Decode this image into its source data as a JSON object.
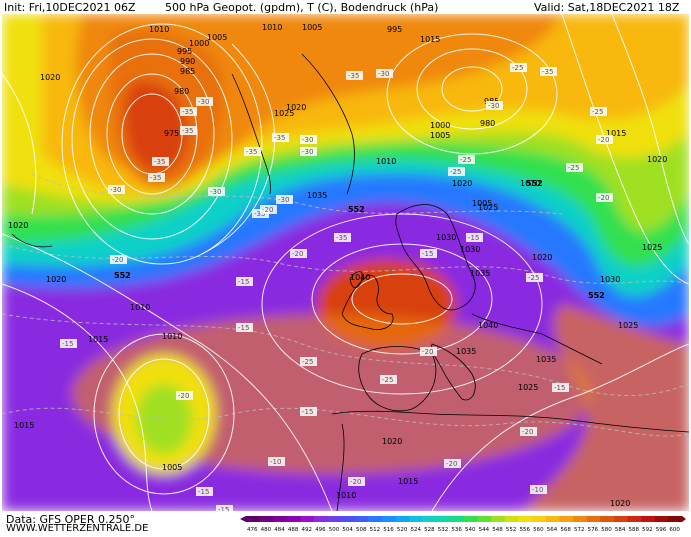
{
  "header": {
    "init": "Init: Fri,10DEC2021 06Z",
    "title": "500 hPa Geopot. (gpdm), T (C), Bodendruck (hPa)",
    "valid": "Valid: Sat,18DEC2021 18Z"
  },
  "footer": {
    "data_source": "Data: GFS OPER 0.250°",
    "site": "WWW.WETTERZENTRALE.DE"
  },
  "colors": {
    "background": "#ffffff",
    "isobar": "#ffffff",
    "coastline": "#000000",
    "temp_line": "#bbbbbb"
  },
  "legend": {
    "values": [
      "476",
      "480",
      "484",
      "488",
      "492",
      "496",
      "500",
      "504",
      "508",
      "512",
      "516",
      "520",
      "524",
      "528",
      "532",
      "536",
      "540",
      "544",
      "548",
      "552",
      "556",
      "560",
      "564",
      "568",
      "572",
      "576",
      "580",
      "584",
      "588",
      "592",
      "596",
      "600"
    ],
    "colors": [
      "#5a0066",
      "#6e0080",
      "#80009a",
      "#8e00b4",
      "#9b10cc",
      "#8a2ce0",
      "#6a40e8",
      "#5050f0",
      "#3c60f8",
      "#2878ff",
      "#1a90ff",
      "#10a8f0",
      "#10c0e0",
      "#10d0c8",
      "#10d8a8",
      "#18dc80",
      "#30e050",
      "#60e030",
      "#a0e020",
      "#d0e010",
      "#f0e010",
      "#f8d010",
      "#f8b810",
      "#f8a010",
      "#f08810",
      "#e87010",
      "#e05810",
      "#d84010",
      "#d02810",
      "#c01010",
      "#a00a0a",
      "#800808"
    ]
  },
  "map": {
    "height_fields": [
      {
        "level": "508",
        "color": "#8a2ce0"
      },
      {
        "level": "520",
        "color": "#2878ff"
      },
      {
        "level": "532",
        "color": "#10d0c8"
      },
      {
        "level": "540",
        "color": "#30e050"
      },
      {
        "level": "548",
        "color": "#a0e020"
      },
      {
        "level": "556",
        "color": "#f0e010"
      },
      {
        "level": "564",
        "color": "#f8b810"
      },
      {
        "level": "572",
        "color": "#f08810"
      },
      {
        "level": "576",
        "color": "#e87010"
      },
      {
        "level": "584",
        "color": "#d84010"
      }
    ],
    "pressure_labels": [
      "1010",
      "1005",
      "1000",
      "995",
      "990",
      "985",
      "980",
      "975",
      "1010",
      "1005",
      "995",
      "1015",
      "1020",
      "1025",
      "1020",
      "1000",
      "1005",
      "1035",
      "1020",
      "1010",
      "1005",
      "985",
      "980",
      "1015",
      "1010",
      "1020",
      "1020",
      "1030",
      "1025",
      "1030",
      "1040",
      "1035",
      "1040",
      "1035",
      "1035",
      "1025",
      "1030",
      "1020",
      "1025",
      "1020",
      "1025",
      "1020",
      "1015",
      "1010",
      "1020",
      "1005",
      "1015",
      "1010",
      "1015",
      "1010",
      "1025"
    ],
    "temperature_labels": [
      "-35",
      "-35",
      "-35",
      "-35",
      "-30",
      "-30",
      "-30",
      "-35",
      "-35",
      "-30",
      "-35",
      "-30",
      "-35",
      "-30",
      "-35",
      "-30",
      "-25",
      "-35",
      "-25",
      "-30",
      "-25",
      "-25",
      "-15",
      "-20",
      "-20",
      "-25",
      "-20",
      "-20",
      "-15",
      "-20",
      "-20",
      "-15",
      "-25",
      "-15",
      "-25",
      "-10",
      "-20",
      "-20",
      "-15",
      "-25",
      "-15",
      "-20",
      "-20",
      "-15",
      "-15",
      "-15",
      "-10"
    ],
    "height_labels": [
      "552",
      "552",
      "552",
      "552"
    ]
  }
}
